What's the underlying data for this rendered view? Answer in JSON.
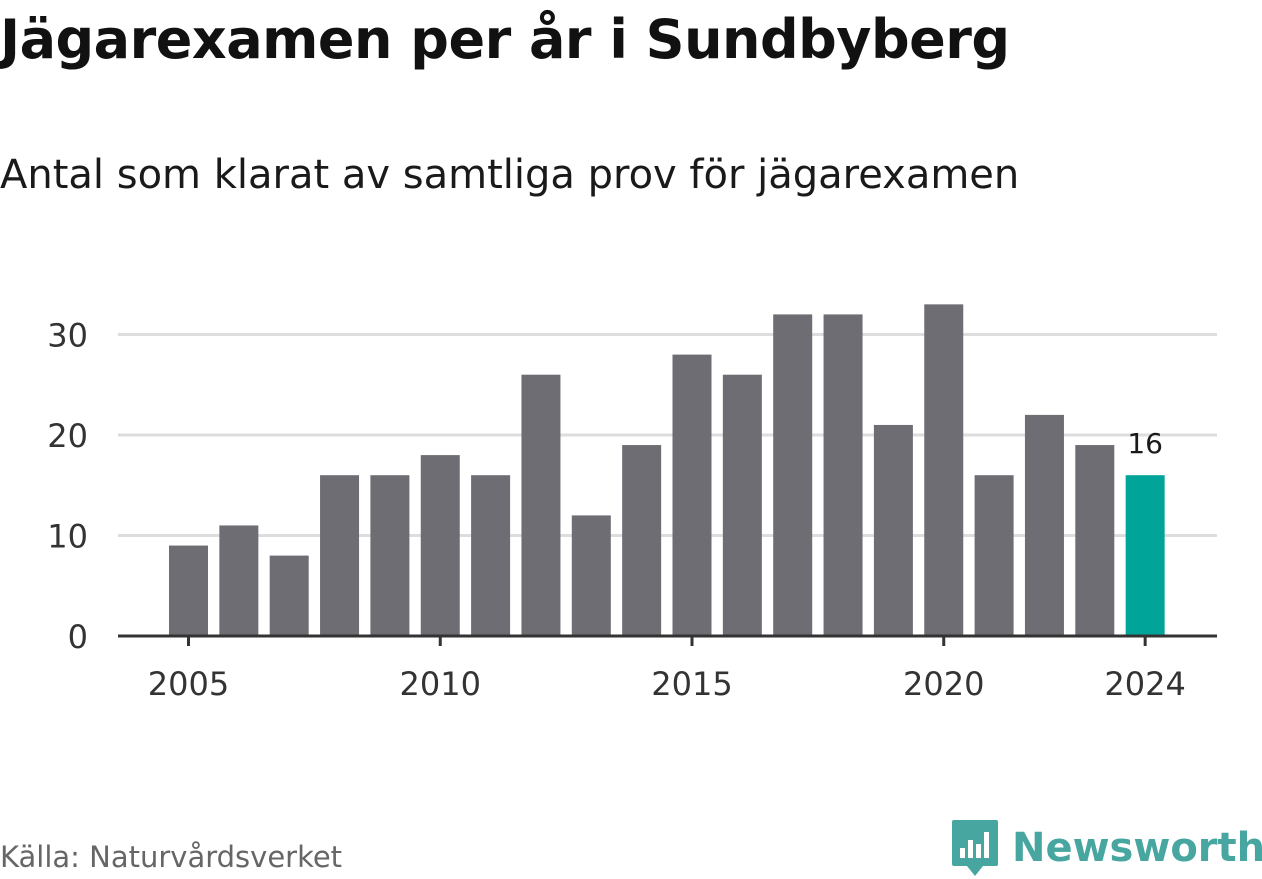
{
  "header": {
    "title": "Jägarexamen per år i Sundbyberg",
    "subtitle": "Antal som klarat av samtliga prov för jägarexamen"
  },
  "footer": {
    "source": "Källa: Naturvårdsverket",
    "brand": "Newsworthy"
  },
  "colors": {
    "bar": "#6e6d73",
    "highlight": "#00a499",
    "grid": "#dddddd",
    "axis": "#333333",
    "brand": "#47a6a0"
  },
  "chart_data": {
    "type": "bar",
    "categories": [
      2005,
      2006,
      2007,
      2008,
      2009,
      2010,
      2011,
      2012,
      2013,
      2014,
      2015,
      2016,
      2017,
      2018,
      2019,
      2020,
      2021,
      2022,
      2023,
      2024
    ],
    "values": [
      9,
      11,
      8,
      16,
      16,
      18,
      16,
      26,
      12,
      19,
      28,
      26,
      32,
      32,
      21,
      33,
      16,
      22,
      19,
      16
    ],
    "highlight_category": 2024,
    "highlight_label": "16",
    "xticks": [
      "2005",
      "2010",
      "2015",
      "2020",
      "2024"
    ],
    "yticks": [
      "0",
      "10",
      "20",
      "30"
    ],
    "ylim": [
      0,
      35
    ],
    "grid": true,
    "xlabel": "",
    "ylabel": ""
  }
}
